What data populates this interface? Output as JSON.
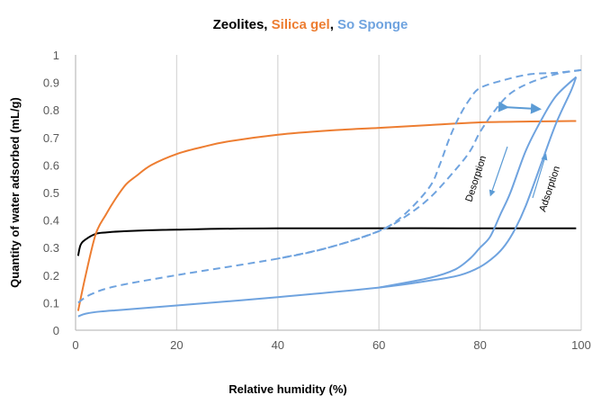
{
  "chart_data": {
    "type": "line",
    "title_parts": [
      {
        "text": "Zeolites",
        "color": "#000000"
      },
      {
        "text": ", ",
        "color": "#000000"
      },
      {
        "text": "Silica gel",
        "color": "#ED7D31"
      },
      {
        "text": ", ",
        "color": "#000000"
      },
      {
        "text": "So Sponge",
        "color": "#6FA3DF"
      }
    ],
    "xlabel": "Relative humidity (%)",
    "ylabel": "Quantity of water adsorbed (mL/g)",
    "xlim": [
      0,
      100
    ],
    "ylim": [
      0,
      1
    ],
    "xticks": [
      "0",
      "20",
      "40",
      "60",
      "80",
      "100"
    ],
    "yticks": [
      "0",
      "0.1",
      "0.2",
      "0.3",
      "0.4",
      "0.5",
      "0.6",
      "0.7",
      "0.8",
      "0.9",
      "1"
    ],
    "grid": "vertical",
    "series": [
      {
        "name": "Zeolites",
        "color": "#000000",
        "dash": false,
        "points": [
          [
            0.5,
            0.27
          ],
          [
            1,
            0.31
          ],
          [
            2,
            0.33
          ],
          [
            4,
            0.35
          ],
          [
            6,
            0.355
          ],
          [
            10,
            0.36
          ],
          [
            20,
            0.365
          ],
          [
            40,
            0.37
          ],
          [
            99,
            0.37
          ]
        ]
      },
      {
        "name": "Silica gel",
        "color": "#ED7D31",
        "dash": false,
        "points": [
          [
            0.5,
            0.07
          ],
          [
            2,
            0.2
          ],
          [
            4,
            0.35
          ],
          [
            6,
            0.42
          ],
          [
            8,
            0.48
          ],
          [
            10,
            0.53
          ],
          [
            12,
            0.56
          ],
          [
            15,
            0.6
          ],
          [
            20,
            0.64
          ],
          [
            25,
            0.665
          ],
          [
            30,
            0.685
          ],
          [
            40,
            0.71
          ],
          [
            50,
            0.725
          ],
          [
            60,
            0.735
          ],
          [
            70,
            0.745
          ],
          [
            80,
            0.755
          ],
          [
            90,
            0.758
          ],
          [
            99,
            0.76
          ]
        ]
      },
      {
        "name": "So Sponge adsorption (solid)",
        "color": "#6FA3DF",
        "dash": false,
        "points": [
          [
            0.5,
            0.05
          ],
          [
            2,
            0.06
          ],
          [
            5,
            0.068
          ],
          [
            10,
            0.075
          ],
          [
            20,
            0.09
          ],
          [
            40,
            0.12
          ],
          [
            60,
            0.155
          ],
          [
            70,
            0.18
          ],
          [
            76,
            0.2
          ],
          [
            80,
            0.23
          ],
          [
            83,
            0.27
          ],
          [
            85,
            0.31
          ],
          [
            87,
            0.37
          ],
          [
            89,
            0.45
          ],
          [
            92,
            0.6
          ],
          [
            95,
            0.75
          ],
          [
            98,
            0.87
          ],
          [
            99,
            0.92
          ]
        ]
      },
      {
        "name": "So Sponge desorption (solid)",
        "color": "#6FA3DF",
        "dash": false,
        "points": [
          [
            99,
            0.92
          ],
          [
            95,
            0.85
          ],
          [
            92,
            0.76
          ],
          [
            89,
            0.65
          ],
          [
            86,
            0.5
          ],
          [
            84,
            0.42
          ],
          [
            82,
            0.34
          ],
          [
            80,
            0.3
          ],
          [
            78,
            0.26
          ],
          [
            75,
            0.22
          ],
          [
            70,
            0.19
          ],
          [
            60,
            0.155
          ]
        ]
      },
      {
        "name": "So Sponge adsorption (dashed)",
        "color": "#6FA3DF",
        "dash": true,
        "points": [
          [
            0.5,
            0.1
          ],
          [
            3,
            0.13
          ],
          [
            8,
            0.16
          ],
          [
            20,
            0.2
          ],
          [
            40,
            0.26
          ],
          [
            50,
            0.3
          ],
          [
            60,
            0.36
          ],
          [
            65,
            0.41
          ],
          [
            70,
            0.48
          ],
          [
            75,
            0.58
          ],
          [
            78,
            0.65
          ],
          [
            80,
            0.72
          ],
          [
            83,
            0.8
          ],
          [
            86,
            0.86
          ],
          [
            90,
            0.9
          ],
          [
            95,
            0.93
          ],
          [
            100,
            0.945
          ]
        ]
      },
      {
        "name": "So Sponge desorption (dashed)",
        "color": "#6FA3DF",
        "dash": true,
        "points": [
          [
            100,
            0.945
          ],
          [
            95,
            0.935
          ],
          [
            90,
            0.93
          ],
          [
            85,
            0.91
          ],
          [
            80,
            0.88
          ],
          [
            78,
            0.84
          ],
          [
            76,
            0.78
          ],
          [
            74,
            0.7
          ],
          [
            72,
            0.6
          ],
          [
            70,
            0.52
          ],
          [
            65,
            0.42
          ],
          [
            60,
            0.36
          ],
          [
            50,
            0.3
          ],
          [
            40,
            0.26
          ]
        ]
      }
    ],
    "annotations": {
      "desorption": "Desorption",
      "adsorption": "Adsorption"
    }
  }
}
